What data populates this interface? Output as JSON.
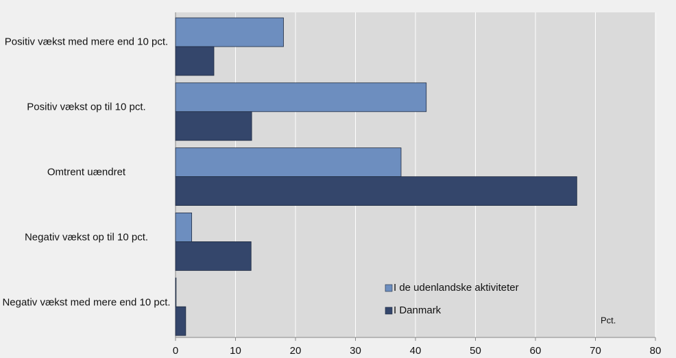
{
  "chart_data": {
    "type": "bar",
    "orientation": "horizontal",
    "categories": [
      "Positiv vækst med mere end 10 pct.",
      "Positiv vækst op til 10 pct.",
      "Omtrent uændret",
      "Negativ vækst op til 10 pct.",
      "Negativ vækst med mere end 10 pct."
    ],
    "series": [
      {
        "name": "I de udenlandske aktiviteter",
        "color": "#6d8ebf",
        "values": [
          18,
          41.8,
          37.6,
          2.7,
          0.1
        ]
      },
      {
        "name": "I Danmark",
        "color": "#34466b",
        "values": [
          6.4,
          12.7,
          66.9,
          12.6,
          1.7
        ]
      }
    ],
    "xlim": [
      0,
      80
    ],
    "xticks": [
      0,
      10,
      20,
      30,
      40,
      50,
      60,
      70,
      80
    ],
    "grid": true,
    "annotation": "Pct.",
    "legend": "lower right"
  }
}
